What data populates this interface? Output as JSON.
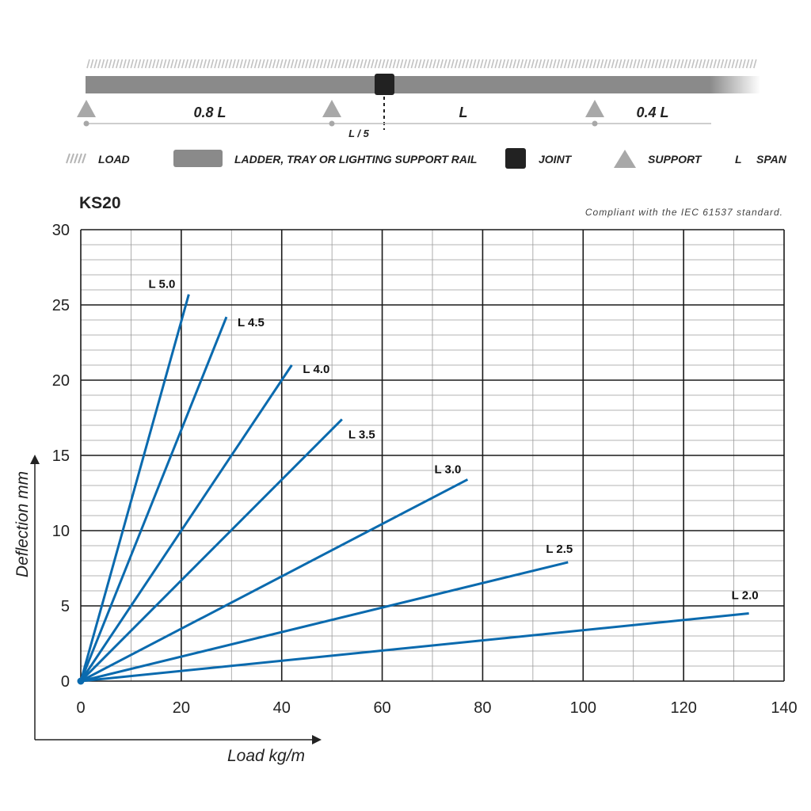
{
  "beam_diagram": {
    "segment_labels": [
      "0.8 L",
      "L",
      "0.4 L"
    ],
    "joint_offset_label": "L / 5"
  },
  "legend": {
    "load": "LOAD",
    "rail": "LADDER, TRAY OR LIGHTING SUPPORT RAIL",
    "joint": "JOINT",
    "support": "SUPPORT",
    "span_symbol": "L",
    "span": "SPAN"
  },
  "product_code": "KS20",
  "compliance_note": "Compliant with the IEC 61537 standard.",
  "colors": {
    "series": "#0a6aae",
    "rail": "#8a8a8a",
    "joint": "#222222",
    "support": "#a8a8a8",
    "grid_major": "#1a1a1a",
    "grid_minor": "#9a9a9a"
  },
  "chart_data": {
    "type": "line",
    "xlabel": "Load kg/m",
    "ylabel": "Deflection mm",
    "xlim": [
      0,
      140
    ],
    "ylim": [
      0,
      30
    ],
    "xticks": [
      0,
      20,
      40,
      60,
      80,
      100,
      120,
      140
    ],
    "yticks": [
      0,
      5,
      10,
      15,
      20,
      25,
      30
    ],
    "grid": true,
    "series": [
      {
        "name": "L 5.0",
        "x": [
          0,
          21.5
        ],
        "y": [
          0,
          25.7
        ]
      },
      {
        "name": "L 4.5",
        "x": [
          0,
          29
        ],
        "y": [
          0,
          24.2
        ]
      },
      {
        "name": "L 4.0",
        "x": [
          0,
          42
        ],
        "y": [
          0,
          21.0
        ]
      },
      {
        "name": "L 3.5",
        "x": [
          0,
          52
        ],
        "y": [
          0,
          17.4
        ]
      },
      {
        "name": "L 3.0",
        "x": [
          0,
          77
        ],
        "y": [
          0,
          13.4
        ]
      },
      {
        "name": "L 2.5",
        "x": [
          0,
          97
        ],
        "y": [
          0,
          7.9
        ]
      },
      {
        "name": "L 2.0",
        "x": [
          0,
          133
        ],
        "y": [
          0,
          4.5
        ]
      }
    ]
  }
}
